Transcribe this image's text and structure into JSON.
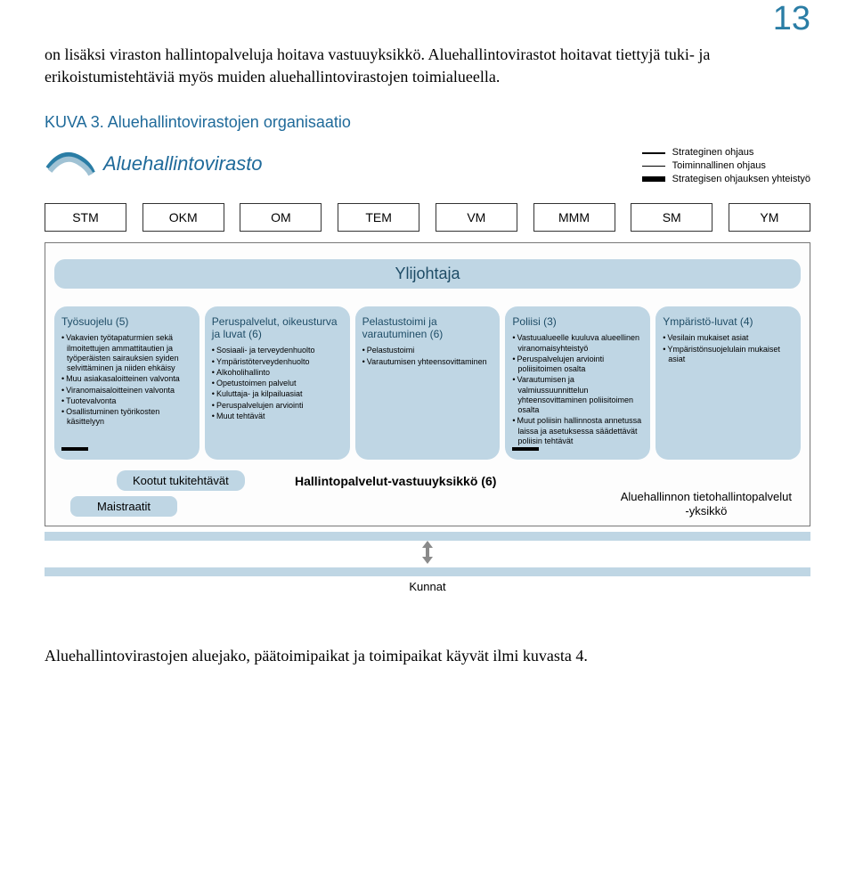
{
  "page_number": "13",
  "intro_text": "on lisäksi viraston hallintopalveluja hoitava vastuuyksikkö. Aluehallintovirastot hoitavat tiettyjä tuki- ja erikoistumistehtäviä myös muiden aluehallintovirastojen toimialueella.",
  "caption": "KUVA 3. Aluehallintovirastojen organisaatio",
  "logo_text": "Aluehallintovirasto",
  "legend": {
    "row1": "Strateginen ohjaus",
    "row2": "Toiminnallinen ohjaus",
    "row3": "Strategisen ohjauksen yhteistyö"
  },
  "ministries": [
    "STM",
    "OKM",
    "OM",
    "TEM",
    "VM",
    "MMM",
    "SM",
    "YM"
  ],
  "ylijohtaja": "Ylijohtaja",
  "departments": [
    {
      "title": "Työsuojelu (5)",
      "items": [
        "Vakavien työtapaturmien sekä ilmoitettujen ammattitautien ja työperäisten sairauksien syiden selvittäminen ja niiden ehkäisy",
        "Muu asiakasaloitteinen valvonta",
        "Viranomaisaloitteinen valvonta",
        "Tuotevalvonta",
        "Osallistuminen työrikosten käsittelyyn"
      ],
      "show_bar": true
    },
    {
      "title": "Peruspalvelut, oikeusturva ja luvat (6)",
      "items": [
        "Sosiaali- ja terveydenhuolto",
        "Ympäristöterveydenhuolto",
        "Alkoholihallinto",
        "Opetustoimen palvelut",
        "Kuluttaja- ja kilpailuasiat",
        "Peruspalvelujen arviointi",
        "Muut tehtävät"
      ],
      "show_bar": false
    },
    {
      "title": "Pelastustoimi ja varautuminen (6)",
      "items": [
        "Pelastustoimi",
        "Varautumisen yhteensovittaminen"
      ],
      "show_bar": false
    },
    {
      "title": "Poliisi (3)",
      "items": [
        "Vastuualueelle kuuluva alueellinen viranomaisyhteistyö",
        "Peruspalvelujen arviointi poliisitoimen osalta",
        "Varautumisen ja valmiussuunnittelun yhteensovittaminen poliisitoimen osalta",
        "Muut poliisin hallinnosta annetussa laissa ja asetuksessa säädettävät poliisin tehtävät"
      ],
      "show_bar": true
    },
    {
      "title": "Ympäristö-luvat (4)",
      "items": [
        "Vesilain mukaiset asiat",
        "Ympäristönsuojelulain mukaiset asiat"
      ],
      "show_bar": false
    }
  ],
  "kootut": "Kootut tukitehtävät",
  "maistraatit": "Maistraatit",
  "hallintopalvelut": "Hallintopalvelut-vastuuyksikkö (6)",
  "tietohallinto_line1": "Aluehallinnon tietohallintopalvelut",
  "tietohallinto_line2": "-yksikkö",
  "kunnat": "Kunnat",
  "bottom_note": "Aluehallintovirastojen aluejako, päätoimipaikat ja toimipaikat käyvät ilmi kuvasta 4.",
  "colors": {
    "accent": "#2a7da5",
    "box_fill": "#bfd6e4",
    "border": "#777777"
  }
}
